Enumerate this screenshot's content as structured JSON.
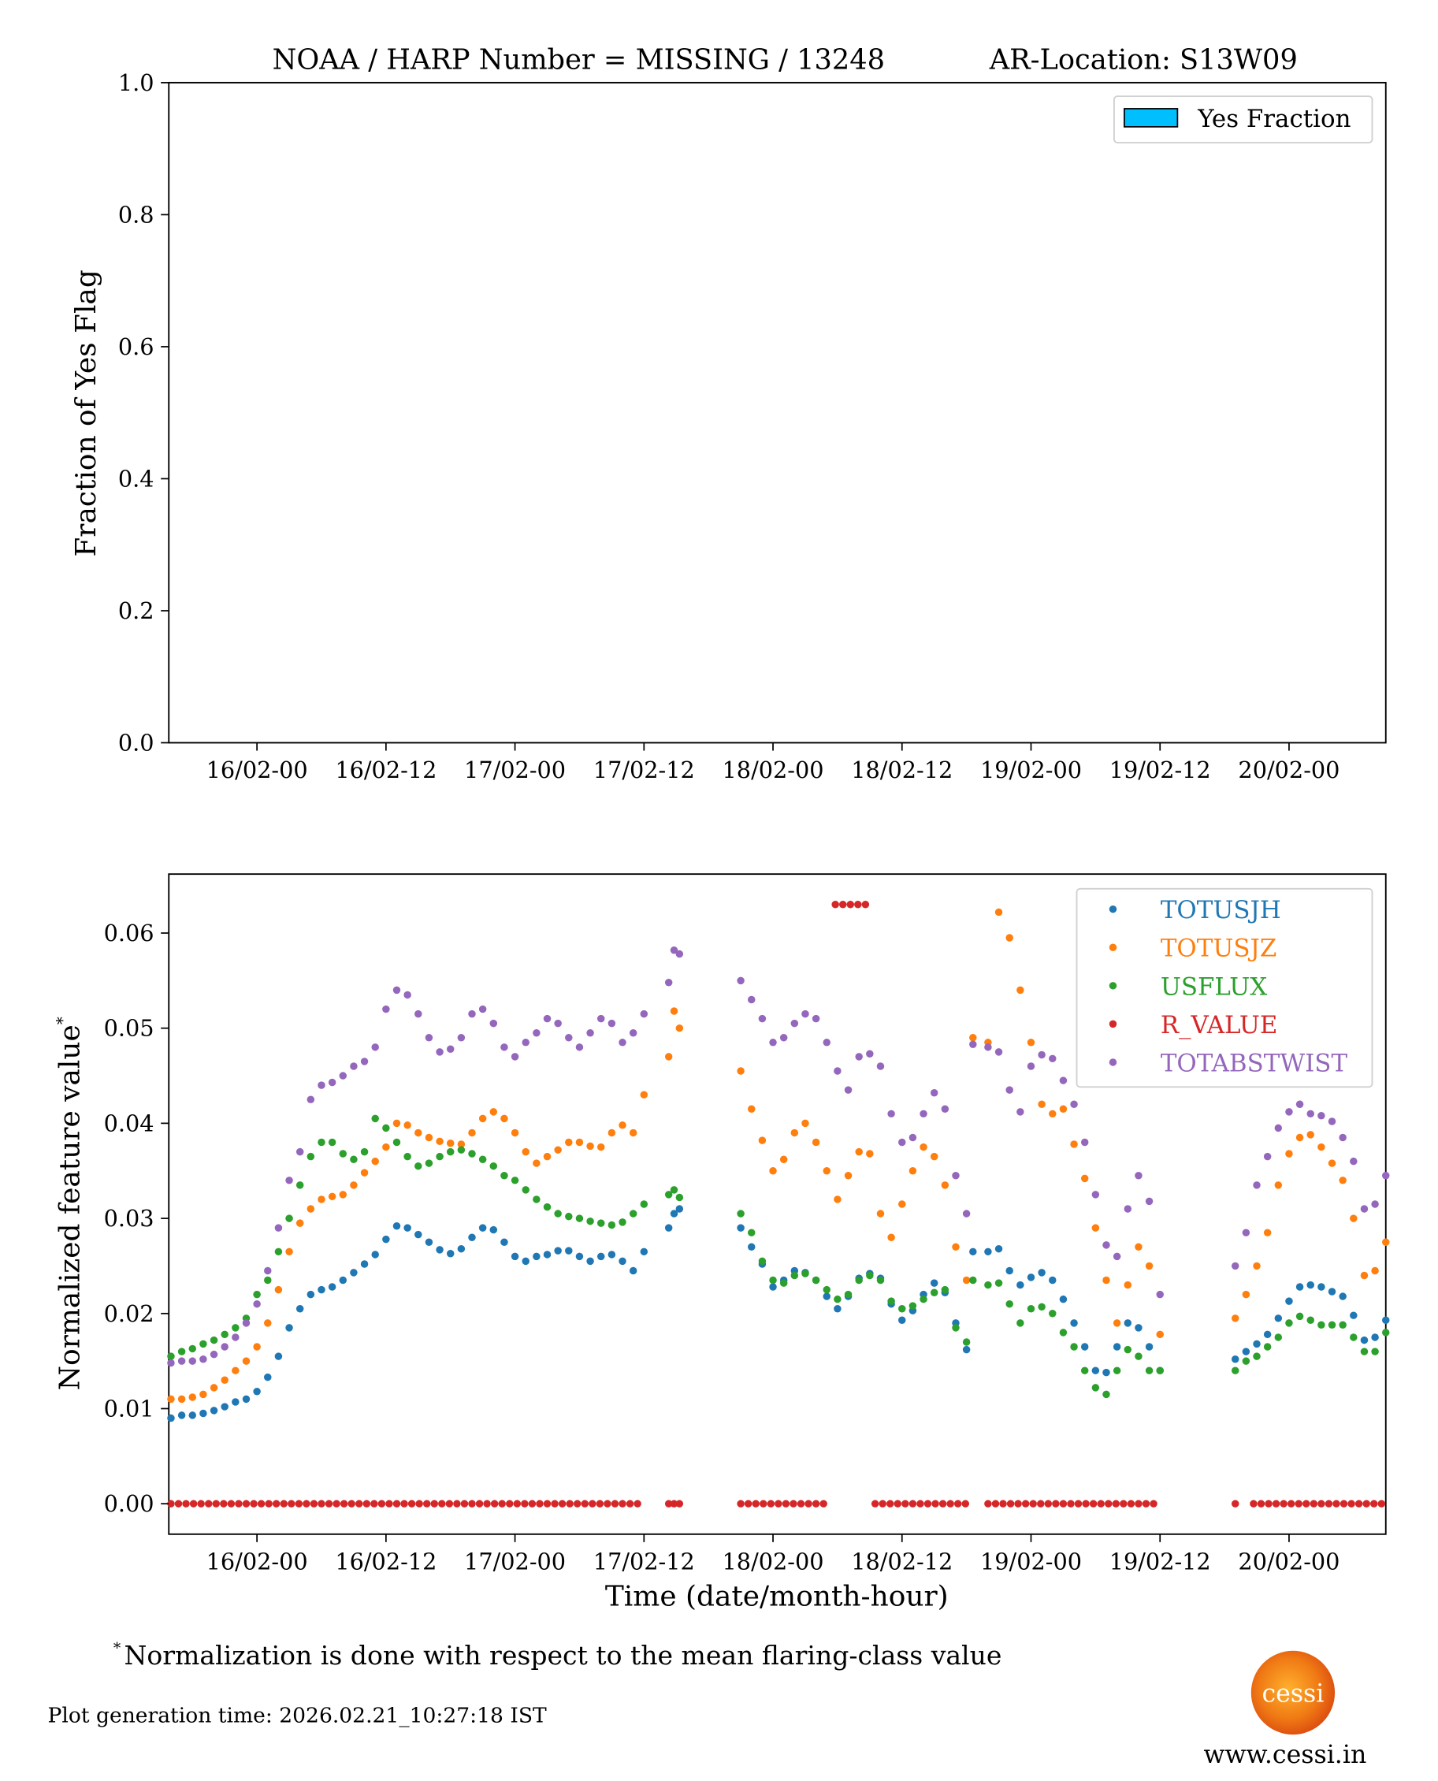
{
  "chart_data": [
    {
      "type": "bar",
      "title_left": "NOAA / HARP Number = MISSING / 13248",
      "title_right": "AR-Location: S13W09",
      "xlabel": "",
      "ylabel": "Fraction of Yes Flag",
      "ylim": [
        0,
        1
      ],
      "yticks": [
        "0.0",
        "0.2",
        "0.4",
        "0.6",
        "0.8",
        "1.0"
      ],
      "ytick_values": [
        0,
        0.2,
        0.4,
        0.6,
        0.8,
        1.0
      ],
      "xticks": [
        "16/02-00",
        "16/02-12",
        "17/02-00",
        "17/02-12",
        "18/02-00",
        "18/02-12",
        "19/02-00",
        "19/02-12",
        "20/02-00"
      ],
      "xtick_hours": [
        0,
        12,
        24,
        36,
        48,
        60,
        72,
        84,
        96
      ],
      "xlim_hours": [
        -8.2,
        105
      ],
      "legend": [
        {
          "label": "Yes Fraction",
          "color": "#00bfff"
        }
      ],
      "legend_position": "top-right",
      "values": []
    },
    {
      "type": "scatter",
      "xlabel": "Time (date/month-hour)",
      "ylabel": "Normalized feature value",
      "ylabel_marker": "*",
      "x_units": "hours since 16/02-00",
      "xlim_hours": [
        -8.2,
        105
      ],
      "ylim": [
        -0.0032,
        0.0662
      ],
      "yticks": [
        "0.00",
        "0.01",
        "0.02",
        "0.03",
        "0.04",
        "0.05",
        "0.06"
      ],
      "ytick_values": [
        0,
        0.01,
        0.02,
        0.03,
        0.04,
        0.05,
        0.06
      ],
      "xticks": [
        "16/02-00",
        "16/02-12",
        "17/02-00",
        "17/02-12",
        "18/02-00",
        "18/02-12",
        "19/02-00",
        "19/02-12",
        "20/02-00"
      ],
      "xtick_hours": [
        0,
        12,
        24,
        36,
        48,
        60,
        72,
        84,
        96
      ],
      "legend_position": "top-right",
      "series_names": [
        "TOTUSJH",
        "TOTUSJZ",
        "USFLUX",
        "R_VALUE",
        "TOTABSTWIST"
      ],
      "colors": {
        "TOTUSJH": "#1f77b4",
        "TOTUSJZ": "#ff7f0e",
        "USFLUX": "#2ca02c",
        "R_VALUE": "#d62728",
        "TOTABSTWIST": "#9467bd"
      },
      "segments": [
        {
          "x": [
            -8,
            -7,
            -6,
            -5,
            -4,
            -3,
            -2,
            -1,
            0,
            1,
            2,
            3,
            4,
            5,
            6,
            7,
            8,
            9,
            10,
            11,
            12,
            13,
            14,
            15,
            16,
            17,
            18,
            19,
            20,
            21,
            22,
            23,
            24,
            25,
            26,
            27,
            28,
            29,
            30,
            31,
            32,
            33,
            34,
            35,
            36
          ],
          "TOTUSJH": [
            0.009,
            0.0093,
            0.0093,
            0.0095,
            0.0098,
            0.0102,
            0.0107,
            0.011,
            0.0118,
            0.0133,
            0.0155,
            0.0185,
            0.0205,
            0.022,
            0.0225,
            0.0228,
            0.0235,
            0.0243,
            0.0252,
            0.0262,
            0.0278,
            0.0292,
            0.029,
            0.0283,
            0.0275,
            0.0267,
            0.0263,
            0.0268,
            0.028,
            0.029,
            0.0288,
            0.0275,
            0.026,
            0.0255,
            0.026,
            0.0262,
            0.0266,
            0.0266,
            0.026,
            0.0255,
            0.026,
            0.0262,
            0.0255,
            0.0245,
            0.0265
          ],
          "TOTUSJZ": [
            0.011,
            0.011,
            0.0112,
            0.0115,
            0.0122,
            0.013,
            0.014,
            0.015,
            0.0165,
            0.019,
            0.0225,
            0.0265,
            0.0295,
            0.031,
            0.032,
            0.0323,
            0.0325,
            0.0335,
            0.0348,
            0.036,
            0.0375,
            0.04,
            0.0398,
            0.039,
            0.0385,
            0.0381,
            0.0379,
            0.0378,
            0.039,
            0.0405,
            0.0412,
            0.0405,
            0.039,
            0.037,
            0.0358,
            0.0365,
            0.0372,
            0.038,
            0.038,
            0.0376,
            0.0375,
            0.039,
            0.0398,
            0.039,
            0.043
          ],
          "USFLUX": [
            0.0155,
            0.016,
            0.0163,
            0.0168,
            0.0172,
            0.0178,
            0.0185,
            0.0195,
            0.022,
            0.0235,
            0.0265,
            0.03,
            0.0335,
            0.0365,
            0.038,
            0.038,
            0.0368,
            0.0362,
            0.037,
            0.0405,
            0.0395,
            0.038,
            0.0365,
            0.0355,
            0.0358,
            0.0365,
            0.037,
            0.0372,
            0.0368,
            0.0362,
            0.0355,
            0.0345,
            0.034,
            0.033,
            0.032,
            0.0312,
            0.0305,
            0.0302,
            0.03,
            0.0297,
            0.0295,
            0.0293,
            0.0296,
            0.0305,
            0.0315
          ],
          "TOTABSTWIST": [
            0.0148,
            0.015,
            0.015,
            0.0152,
            0.0157,
            0.0165,
            0.0175,
            0.019,
            0.021,
            0.0245,
            0.029,
            0.034,
            0.037,
            0.0425,
            0.044,
            0.0443,
            0.045,
            0.046,
            0.0465,
            0.048,
            0.052,
            0.054,
            0.0535,
            0.0515,
            0.049,
            0.0475,
            0.0478,
            0.049,
            0.0515,
            0.052,
            0.0505,
            0.048,
            0.047,
            0.0485,
            0.0495,
            0.051,
            0.0505,
            0.049,
            0.048,
            0.0495,
            0.051,
            0.0505,
            0.0485,
            0.0495,
            0.0515
          ]
        },
        {
          "x": [
            38.3,
            38.8,
            39.3
          ],
          "TOTUSJH": [
            0.029,
            0.0305,
            0.031
          ],
          "TOTUSJZ": [
            0.047,
            0.0518,
            0.05
          ],
          "USFLUX": [
            0.0325,
            0.033,
            0.0322
          ],
          "TOTABSTWIST": [
            0.0548,
            0.0582,
            0.0578
          ]
        },
        {
          "x": [
            45,
            46,
            47,
            48,
            49,
            50,
            51,
            52,
            53,
            54,
            55,
            56,
            57,
            58,
            59,
            60,
            61,
            62,
            63,
            64,
            65,
            66,
            66.6
          ],
          "TOTUSJH": [
            0.029,
            0.027,
            0.0252,
            0.0228,
            0.0235,
            0.0245,
            0.0243,
            0.0235,
            0.0218,
            0.0205,
            0.0218,
            0.0237,
            0.0242,
            0.0237,
            0.021,
            0.0193,
            0.0203,
            0.022,
            0.0232,
            0.0222,
            0.019,
            0.0162,
            0.0265
          ],
          "TOTUSJZ": [
            0.0455,
            0.0415,
            0.0382,
            0.035,
            0.0362,
            0.039,
            0.04,
            0.038,
            0.035,
            0.032,
            0.0345,
            0.037,
            0.0368,
            0.0305,
            0.028,
            0.0315,
            0.035,
            0.0375,
            0.0365,
            0.0335,
            0.027,
            0.0235,
            0.049
          ],
          "USFLUX": [
            0.0305,
            0.0285,
            0.0255,
            0.0235,
            0.0232,
            0.024,
            0.0242,
            0.0235,
            0.0225,
            0.0215,
            0.022,
            0.0235,
            0.024,
            0.0235,
            0.0213,
            0.0205,
            0.0208,
            0.0215,
            0.0222,
            0.0225,
            0.0185,
            0.017,
            0.0235
          ],
          "TOTABSTWIST": [
            0.055,
            0.053,
            0.051,
            0.0485,
            0.049,
            0.0505,
            0.0515,
            0.051,
            0.0485,
            0.0455,
            0.0435,
            0.047,
            0.0473,
            0.046,
            0.041,
            0.038,
            0.0385,
            0.041,
            0.0432,
            0.0415,
            0.0345,
            0.0305,
            0.0483
          ]
        },
        {
          "x": [
            68,
            69,
            70,
            71,
            72,
            73,
            74,
            75,
            76,
            77,
            78,
            79,
            80,
            81,
            82,
            83,
            84
          ],
          "TOTUSJH": [
            0.0265,
            0.0268,
            0.0245,
            0.023,
            0.0238,
            0.0243,
            0.0235,
            0.0215,
            0.019,
            0.0165,
            0.014,
            0.0138,
            0.0165,
            0.019,
            0.0185,
            0.0165,
            0.014
          ],
          "TOTUSJZ": [
            0.0485,
            0.0622,
            0.0595,
            0.054,
            0.0485,
            0.042,
            0.041,
            0.0415,
            0.0378,
            0.0342,
            0.029,
            0.0235,
            0.019,
            0.023,
            0.027,
            0.025,
            0.0178
          ],
          "USFLUX": [
            0.023,
            0.0232,
            0.021,
            0.019,
            0.0205,
            0.0207,
            0.02,
            0.018,
            0.0165,
            0.014,
            0.0122,
            0.0115,
            0.014,
            0.0162,
            0.0155,
            0.014,
            0.014
          ],
          "TOTABSTWIST": [
            0.048,
            0.0475,
            0.0435,
            0.0412,
            0.046,
            0.0472,
            0.0468,
            0.0445,
            0.042,
            0.038,
            0.0325,
            0.0272,
            0.026,
            0.031,
            0.0345,
            0.0318,
            0.022
          ]
        },
        {
          "x": [
            91,
            92,
            93,
            94,
            95,
            96,
            97,
            98,
            99,
            100,
            101,
            102,
            103,
            104,
            105
          ],
          "TOTUSJH": [
            0.0152,
            0.016,
            0.0168,
            0.0178,
            0.0195,
            0.0213,
            0.0228,
            0.023,
            0.0228,
            0.0223,
            0.0218,
            0.0198,
            0.0172,
            0.0175,
            0.0193
          ],
          "TOTUSJZ": [
            0.0195,
            0.022,
            0.025,
            0.0285,
            0.0335,
            0.0368,
            0.0385,
            0.0388,
            0.0375,
            0.0358,
            0.034,
            0.03,
            0.024,
            0.0245,
            0.0275
          ],
          "USFLUX": [
            0.014,
            0.015,
            0.0155,
            0.0165,
            0.0175,
            0.019,
            0.0197,
            0.0193,
            0.0188,
            0.0188,
            0.0188,
            0.0175,
            0.016,
            0.016,
            0.018
          ],
          "TOTABSTWIST": [
            0.025,
            0.0285,
            0.0335,
            0.0365,
            0.0395,
            0.0412,
            0.042,
            0.041,
            0.0408,
            0.0402,
            0.0385,
            0.036,
            0.031,
            0.0315,
            0.0345
          ]
        }
      ],
      "R_VALUE_runs": [
        {
          "x_start": -8,
          "x_end": 36,
          "step": 0.7,
          "value": 0
        },
        {
          "x_start": 38.3,
          "x_end": 39.3,
          "step": 0.5,
          "value": 0
        },
        {
          "x_start": 45,
          "x_end": 53,
          "step": 0.7,
          "value": 0
        },
        {
          "x_start": 53.8,
          "x_end": 56.6,
          "step": 0.7,
          "value": 0.063
        },
        {
          "x_start": 57.5,
          "x_end": 66.5,
          "step": 0.7,
          "value": 0
        },
        {
          "x_start": 68,
          "x_end": 84,
          "step": 0.7,
          "value": 0
        },
        {
          "x_start": 91,
          "x_end": 91,
          "step": 1,
          "value": 0
        },
        {
          "x_start": 92.7,
          "x_end": 105,
          "step": 0.7,
          "value": 0
        }
      ]
    }
  ],
  "footnote_marker": "*",
  "footnote": "Normalization is done with respect to the mean flaring-class value",
  "generation_time": "Plot generation time: 2026.02.21_10:27:18 IST",
  "logo_text": "cessi",
  "website": "www.cessi.in"
}
